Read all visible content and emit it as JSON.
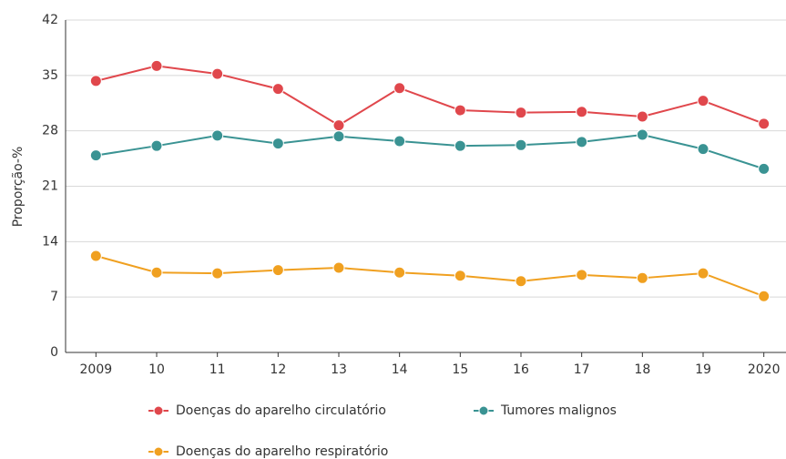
{
  "chart_data": {
    "type": "line",
    "y_label": "Proporção-%",
    "categories": [
      "2009",
      "10",
      "11",
      "12",
      "13",
      "14",
      "15",
      "16",
      "17",
      "18",
      "19",
      "2020"
    ],
    "series": [
      {
        "name": "Doenças do aparelho circulatório",
        "color": "#e0474c",
        "values": [
          34.3,
          36.2,
          35.2,
          33.3,
          28.7,
          33.4,
          30.6,
          30.3,
          30.4,
          29.8,
          31.8,
          28.9
        ]
      },
      {
        "name": "Tumores malignos",
        "color": "#3a9393",
        "values": [
          24.9,
          26.1,
          27.4,
          26.4,
          27.3,
          26.7,
          26.1,
          26.2,
          26.6,
          27.5,
          25.7,
          23.2
        ]
      },
      {
        "name": "Doenças do aparelho respiratório",
        "color": "#f0a020",
        "values": [
          12.2,
          10.1,
          10.0,
          10.4,
          10.7,
          10.1,
          9.7,
          9.0,
          9.8,
          9.4,
          10.0,
          7.1
        ]
      }
    ],
    "ylim": [
      0,
      42
    ],
    "yticks": [
      0,
      7,
      14,
      21,
      28,
      35,
      42
    ],
    "grid": true
  }
}
